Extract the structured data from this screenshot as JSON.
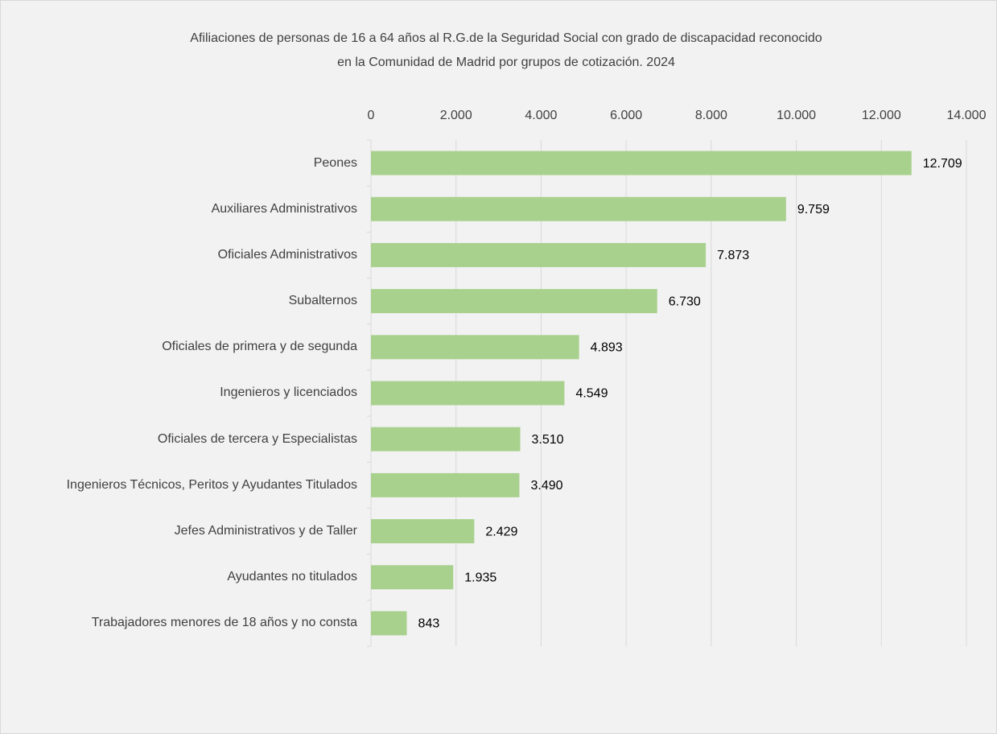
{
  "chart_data": {
    "type": "bar",
    "orientation": "horizontal",
    "title": [
      "Afiliaciones de personas de 16 a 64 años al R.G.de la Seguridad  Social con grado de discapacidad reconocido",
      "en la Comunidad de Madrid por grupos de cotización. 2024"
    ],
    "categories": [
      "Peones",
      "Auxiliares Administrativos",
      "Oficiales Administrativos",
      "Subalternos",
      "Oficiales de primera y de segunda",
      "Ingenieros y licenciados",
      "Oficiales de tercera y Especialistas",
      "Ingenieros Técnicos, Peritos y Ayudantes Titulados",
      "Jefes Administrativos y de Taller",
      "Ayudantes no titulados",
      "Trabajadores menores de 18 años y no consta"
    ],
    "values": [
      12709,
      9759,
      7873,
      6730,
      4893,
      4549,
      3510,
      3490,
      2429,
      1935,
      843
    ],
    "value_labels": [
      "12.709",
      "9.759",
      "7.873",
      "6.730",
      "4.893",
      "4.549",
      "3.510",
      "3.490",
      "2.429",
      "1.935",
      "843"
    ],
    "color": "#a9d18e",
    "xlim": [
      0,
      14000
    ],
    "xticks": [
      0,
      {
        "value": 2000,
        "label": "2.000"
      },
      {
        "value": 4000,
        "label": "4.000"
      },
      {
        "value": 6000,
        "label": "6.000"
      },
      {
        "value": 8000,
        "label": "8.000"
      },
      {
        "value": 10000,
        "label": "10.000"
      },
      {
        "value": 12000,
        "label": "12.000"
      },
      {
        "value": 14000,
        "label": "14.000"
      }
    ],
    "grid": true
  }
}
